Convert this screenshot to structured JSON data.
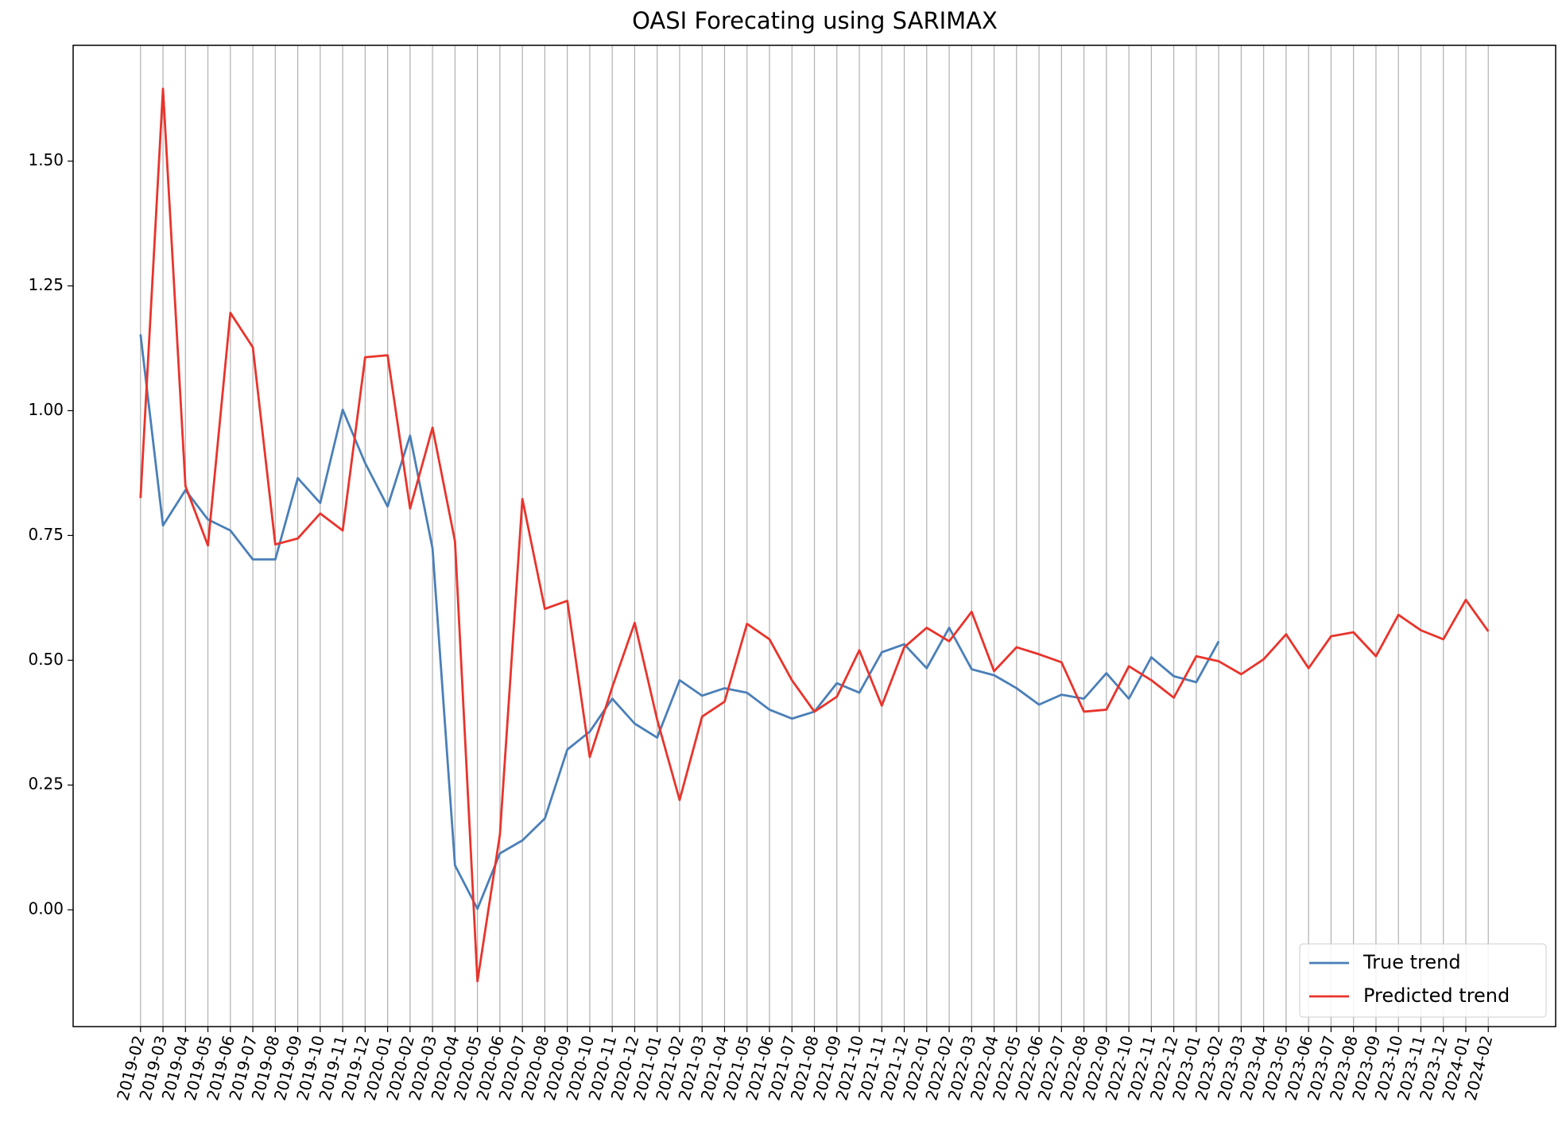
{
  "chart_data": {
    "type": "line",
    "title": "OASI Forecating using SARIMAX",
    "categories": [
      "2019-02",
      "2019-03",
      "2019-04",
      "2019-05",
      "2019-06",
      "2019-07",
      "2019-08",
      "2019-09",
      "2019-10",
      "2019-11",
      "2019-12",
      "2020-01",
      "2020-02",
      "2020-03",
      "2020-04",
      "2020-05",
      "2020-06",
      "2020-07",
      "2020-08",
      "2020-09",
      "2020-10",
      "2020-11",
      "2020-12",
      "2021-01",
      "2021-02",
      "2021-03",
      "2021-04",
      "2021-05",
      "2021-06",
      "2021-07",
      "2021-08",
      "2021-09",
      "2021-10",
      "2021-11",
      "2021-12",
      "2022-01",
      "2022-02",
      "2022-03",
      "2022-04",
      "2022-05",
      "2022-06",
      "2022-07",
      "2022-08",
      "2022-09",
      "2022-10",
      "2022-11",
      "2022-12",
      "2023-01",
      "2023-02",
      "2023-03",
      "2023-04",
      "2023-05",
      "2023-06",
      "2023-07",
      "2023-08",
      "2023-09",
      "2023-10",
      "2023-11",
      "2023-12",
      "2024-01",
      "2024-02"
    ],
    "series": [
      {
        "name": "True trend",
        "color": "#4a7fb8",
        "values": [
          1.153,
          0.77,
          0.841,
          0.782,
          0.76,
          0.702,
          0.702,
          0.865,
          0.815,
          1.002,
          0.895,
          0.808,
          0.95,
          0.724,
          0.089,
          0.002,
          0.113,
          0.139,
          0.183,
          0.321,
          0.357,
          0.423,
          0.373,
          0.345,
          0.46,
          0.429,
          0.444,
          0.435,
          0.401,
          0.383,
          0.397,
          0.454,
          0.435,
          0.516,
          0.532,
          0.484,
          0.565,
          0.482,
          0.47,
          0.444,
          0.411,
          0.431,
          0.423,
          0.474,
          0.423,
          0.506,
          0.468,
          0.456,
          0.538,
          null,
          null,
          null,
          null,
          null,
          null,
          null,
          null,
          null,
          null,
          null,
          null
        ]
      },
      {
        "name": "Predicted trend",
        "color": "#e8342c",
        "values": [
          0.825,
          1.645,
          0.849,
          0.73,
          1.196,
          1.127,
          0.732,
          0.744,
          0.794,
          0.76,
          1.107,
          1.111,
          0.804,
          0.966,
          0.738,
          -0.143,
          0.151,
          0.823,
          0.603,
          0.619,
          0.306,
          0.446,
          0.575,
          0.381,
          0.22,
          0.387,
          0.417,
          0.573,
          0.542,
          0.46,
          0.397,
          0.427,
          0.52,
          0.409,
          0.526,
          0.565,
          0.538,
          0.597,
          0.478,
          0.526,
          0.512,
          0.496,
          0.397,
          0.401,
          0.488,
          0.46,
          0.425,
          0.508,
          0.498,
          0.472,
          0.502,
          0.552,
          0.484,
          0.548,
          0.556,
          0.508,
          0.591,
          0.56,
          0.542,
          0.621,
          0.558
        ]
      }
    ],
    "ylim": [
      -0.234,
      1.732
    ],
    "yticks": [
      {
        "value": 0,
        "label": "0.00"
      },
      {
        "value": 0.25,
        "label": "0.25"
      },
      {
        "value": 0.5,
        "label": "0.50"
      },
      {
        "value": 0.75,
        "label": "0.75"
      },
      {
        "value": 1,
        "label": "1.00"
      },
      {
        "value": 1.25,
        "label": "1.25"
      },
      {
        "value": 1.5,
        "label": "1.50"
      }
    ],
    "xgrid": true,
    "legend": "lower right"
  }
}
